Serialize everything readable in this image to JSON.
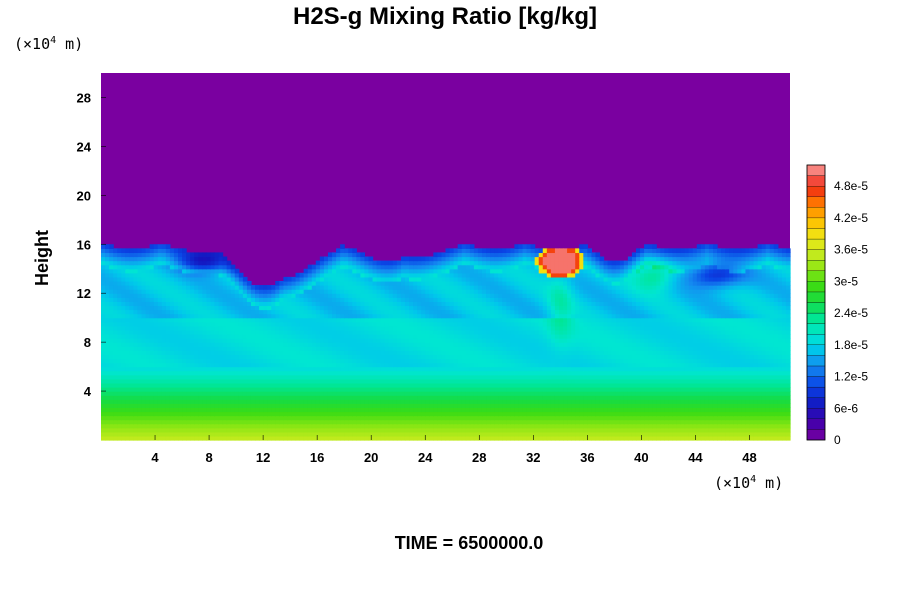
{
  "chart_data": {
    "type": "heatmap",
    "title": "H2S-g Mixing Ratio [kg/kg]",
    "xlabel": "",
    "ylabel": "Height",
    "x_unit": {
      "prefix": "(×10",
      "exp": "4",
      "suffix": " m)"
    },
    "y_unit": {
      "prefix": "(×10",
      "exp": "4",
      "suffix": " m)"
    },
    "xlim": [
      0,
      51
    ],
    "ylim": [
      0,
      30
    ],
    "x_ticks": [
      4,
      8,
      12,
      16,
      20,
      24,
      28,
      32,
      36,
      40,
      44,
      48
    ],
    "y_ticks": [
      4,
      8,
      12,
      16,
      20,
      24,
      28
    ],
    "x_tick_labels": [
      "4",
      "8",
      "12",
      "16",
      "20",
      "24",
      "28",
      "32",
      "36",
      "40",
      "44",
      "48"
    ],
    "y_tick_labels": [
      "4",
      "8",
      "12",
      "16",
      "20",
      "24",
      "28"
    ],
    "colorbar": {
      "min": 0,
      "max": 5.2e-05,
      "ticks": [
        0,
        6e-06,
        1.2e-05,
        1.8e-05,
        2.4e-05,
        3e-05,
        3.6e-05,
        4.2e-05,
        4.8e-05
      ],
      "tick_labels": [
        "0",
        "6e-6",
        "1.2e-5",
        "1.8e-5",
        "2.4e-5",
        "3e-5",
        "3.6e-5",
        "4.2e-5",
        "4.8e-5"
      ]
    },
    "field_features": {
      "upper_region_value": 0,
      "layer_top_height": 16,
      "surface_value": 3.2e-05,
      "mid_value": 1.8e-05,
      "blob_center": [
        34,
        14.6
      ],
      "blob_peak_value": 5e-05
    },
    "grid": false,
    "colorbar_placement": "right"
  },
  "footer": {
    "time_label": "TIME = 6500000.0"
  }
}
